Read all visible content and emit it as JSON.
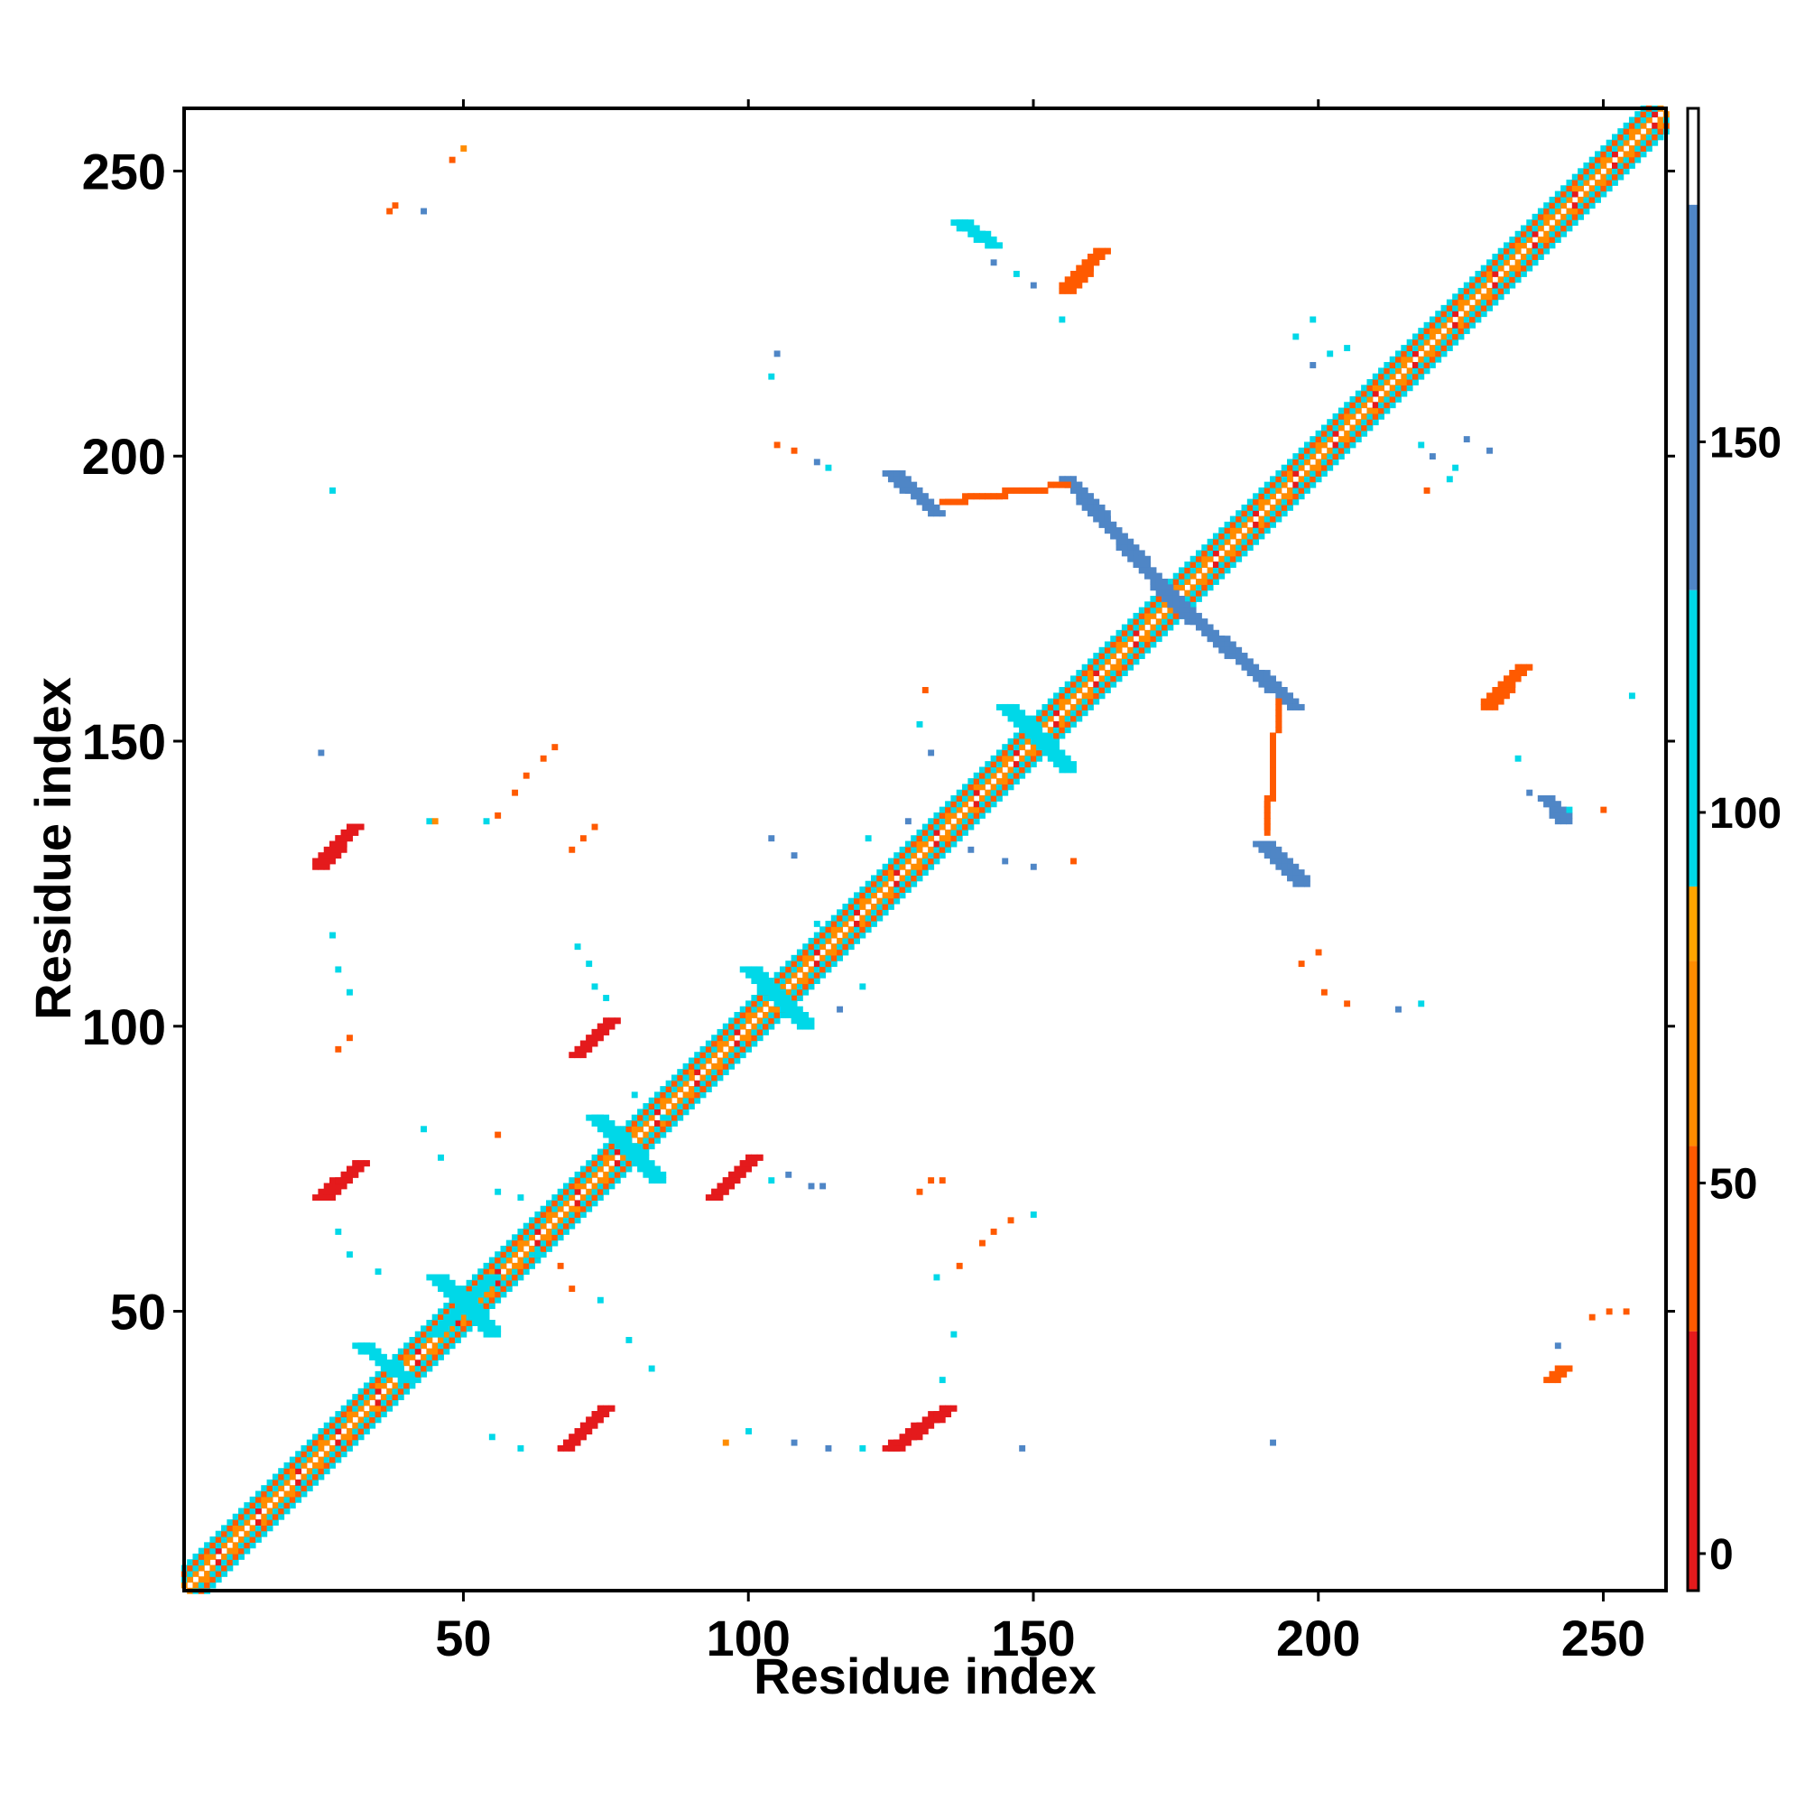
{
  "chart_data": {
    "type": "heatmap",
    "title": "",
    "xlabel": "Residue index",
    "ylabel": "Residue index",
    "xlim": [
      1,
      261
    ],
    "ylim": [
      1,
      261
    ],
    "x_ticks": [
      50,
      100,
      150,
      200,
      250
    ],
    "y_ticks": [
      50,
      100,
      150,
      200,
      250
    ],
    "grid": false,
    "colorbar": {
      "range": [
        -5,
        195
      ],
      "ticks": [
        0,
        50,
        100,
        150
      ],
      "bands": [
        {
          "from": -5,
          "to": 30,
          "color": "#e41a1c"
        },
        {
          "from": 30,
          "to": 55,
          "color": "#ff5a00"
        },
        {
          "from": 55,
          "to": 80,
          "color": "#ff8c00"
        },
        {
          "from": 80,
          "to": 90,
          "color": "#ffa500"
        },
        {
          "from": 90,
          "to": 130,
          "color": "#00d8e8"
        },
        {
          "from": 130,
          "to": 182,
          "color": "#4f86c6"
        },
        {
          "from": 182,
          "to": 195,
          "color": "#ffffff"
        }
      ]
    },
    "diagonal_band": {
      "from": 1,
      "to": 261,
      "halfwidth": 4
    },
    "segments": [
      {
        "x1": 25,
        "y1": 128,
        "x2": 31,
        "y2": 135,
        "w": 3,
        "v": 20
      },
      {
        "x1": 25,
        "y1": 70,
        "x2": 32,
        "y2": 76,
        "w": 3,
        "v": 20
      },
      {
        "x1": 68,
        "y1": 26,
        "x2": 75,
        "y2": 33,
        "w": 3,
        "v": 25
      },
      {
        "x1": 70,
        "y1": 95,
        "x2": 76,
        "y2": 101,
        "w": 3,
        "v": 25
      },
      {
        "x1": 94,
        "y1": 70,
        "x2": 101,
        "y2": 77,
        "w": 3,
        "v": 25
      },
      {
        "x1": 125,
        "y1": 26,
        "x2": 135,
        "y2": 33,
        "w": 3,
        "v": 20
      },
      {
        "x1": 156,
        "y1": 229,
        "x2": 162,
        "y2": 236,
        "w": 3,
        "v": 30
      },
      {
        "x1": 230,
        "y1": 156,
        "x2": 236,
        "y2": 163,
        "w": 3,
        "v": 30
      },
      {
        "x1": 241,
        "y1": 38,
        "x2": 243,
        "y2": 40,
        "w": 3,
        "v": 50
      },
      {
        "x1": 125,
        "y1": 197,
        "x2": 133,
        "y2": 190,
        "w": 3,
        "v": 140
      },
      {
        "x1": 190,
        "y1": 132,
        "x2": 197,
        "y2": 125,
        "w": 3,
        "v": 140
      },
      {
        "x1": 156,
        "y1": 196,
        "x2": 175,
        "y2": 174,
        "w": 3,
        "v": 145
      },
      {
        "x1": 175,
        "y1": 174,
        "x2": 196,
        "y2": 156,
        "w": 3,
        "v": 145
      },
      {
        "x1": 137,
        "y1": 241,
        "x2": 143,
        "y2": 237,
        "w": 2,
        "v": 110
      },
      {
        "x1": 240,
        "y1": 140,
        "x2": 243,
        "y2": 136,
        "w": 2,
        "v": 140
      },
      {
        "x1": 134,
        "y1": 192,
        "x2": 156,
        "y2": 195,
        "w": 1.5,
        "v": 40
      },
      {
        "x1": 191,
        "y1": 134,
        "x2": 193,
        "y2": 157,
        "w": 1.5,
        "v": 40
      },
      {
        "x1": 32,
        "y1": 44,
        "x2": 40,
        "y2": 38,
        "w": 2,
        "v": 100
      },
      {
        "x1": 45,
        "y1": 56,
        "x2": 55,
        "y2": 46,
        "w": 3,
        "v": 110
      },
      {
        "x1": 45,
        "y1": 46,
        "x2": 55,
        "y2": 56,
        "w": 3,
        "v": 110
      },
      {
        "x1": 100,
        "y1": 110,
        "x2": 110,
        "y2": 100,
        "w": 3,
        "v": 110
      },
      {
        "x1": 145,
        "y1": 156,
        "x2": 156,
        "y2": 145,
        "w": 3,
        "v": 110
      },
      {
        "x1": 73,
        "y1": 84,
        "x2": 84,
        "y2": 73,
        "w": 2,
        "v": 110
      }
    ],
    "points": [
      [
        37,
        243,
        40
      ],
      [
        38,
        244,
        50
      ],
      [
        43,
        243,
        140
      ],
      [
        48,
        252,
        40
      ],
      [
        50,
        254,
        55
      ],
      [
        27,
        194,
        110
      ],
      [
        25,
        148,
        140
      ],
      [
        27,
        116,
        110
      ],
      [
        28,
        110,
        110
      ],
      [
        30,
        106,
        110
      ],
      [
        28,
        96,
        50
      ],
      [
        30,
        98,
        40
      ],
      [
        44,
        136,
        110
      ],
      [
        45,
        136,
        60
      ],
      [
        54,
        136,
        110
      ],
      [
        56,
        137,
        40
      ],
      [
        59,
        141,
        50
      ],
      [
        61,
        144,
        40
      ],
      [
        64,
        147,
        30
      ],
      [
        66,
        149,
        50
      ],
      [
        69,
        131,
        50
      ],
      [
        71,
        133,
        40
      ],
      [
        73,
        135,
        50
      ],
      [
        70,
        114,
        110
      ],
      [
        72,
        111,
        110
      ],
      [
        73,
        107,
        110
      ],
      [
        75,
        105,
        110
      ],
      [
        89,
        91,
        110
      ],
      [
        92,
        89,
        40
      ],
      [
        85,
        84,
        110
      ],
      [
        80,
        88,
        110
      ],
      [
        43,
        82,
        110
      ],
      [
        56,
        81,
        40
      ],
      [
        46,
        77,
        110
      ],
      [
        56,
        71,
        110
      ],
      [
        60,
        70,
        110
      ],
      [
        28,
        64,
        110
      ],
      [
        30,
        60,
        110
      ],
      [
        35,
        57,
        110
      ],
      [
        63,
        60,
        110
      ],
      [
        67,
        58,
        40
      ],
      [
        69,
        54,
        50
      ],
      [
        74,
        52,
        110
      ],
      [
        79,
        45,
        110
      ],
      [
        83,
        40,
        110
      ],
      [
        55,
        28,
        110
      ],
      [
        60,
        26,
        110
      ],
      [
        96,
        27,
        60
      ],
      [
        100,
        29,
        110
      ],
      [
        108,
        27,
        140
      ],
      [
        114,
        26,
        140
      ],
      [
        120,
        26,
        110
      ],
      [
        104,
        73,
        110
      ],
      [
        107,
        74,
        140
      ],
      [
        111,
        72,
        140
      ],
      [
        113,
        72,
        140
      ],
      [
        130,
        71,
        50
      ],
      [
        132,
        73,
        50
      ],
      [
        134,
        73,
        40
      ],
      [
        133,
        56,
        110
      ],
      [
        137,
        58,
        40
      ],
      [
        141,
        62,
        50
      ],
      [
        143,
        64,
        50
      ],
      [
        146,
        66,
        50
      ],
      [
        150,
        67,
        110
      ],
      [
        136,
        46,
        110
      ],
      [
        134,
        38,
        110
      ],
      [
        148,
        26,
        140
      ],
      [
        192,
        27,
        140
      ],
      [
        105,
        218,
        140
      ],
      [
        104,
        214,
        110
      ],
      [
        105,
        202,
        50
      ],
      [
        108,
        201,
        50
      ],
      [
        112,
        199,
        140
      ],
      [
        114,
        198,
        110
      ],
      [
        131,
        159,
        40
      ],
      [
        130,
        153,
        110
      ],
      [
        132,
        148,
        140
      ],
      [
        128,
        136,
        140
      ],
      [
        121,
        133,
        110
      ],
      [
        104,
        133,
        140
      ],
      [
        108,
        130,
        140
      ],
      [
        139,
        131,
        140
      ],
      [
        145,
        129,
        140
      ],
      [
        150,
        128,
        140
      ],
      [
        157,
        129,
        30
      ],
      [
        116,
        103,
        140
      ],
      [
        120,
        107,
        110
      ],
      [
        112,
        118,
        110
      ],
      [
        197,
        111,
        40
      ],
      [
        200,
        113,
        40
      ],
      [
        201,
        106,
        50
      ],
      [
        205,
        104,
        40
      ],
      [
        214,
        103,
        140
      ],
      [
        218,
        104,
        110
      ],
      [
        196,
        221,
        110
      ],
      [
        199,
        224,
        110
      ],
      [
        202,
        218,
        110
      ],
      [
        205,
        219,
        110
      ],
      [
        199,
        216,
        140
      ],
      [
        218,
        202,
        110
      ],
      [
        220,
        200,
        140
      ],
      [
        224,
        198,
        110
      ],
      [
        226,
        203,
        140
      ],
      [
        230,
        201,
        140
      ],
      [
        219,
        194,
        50
      ],
      [
        223,
        196,
        110
      ],
      [
        155,
        224,
        110
      ],
      [
        150,
        230,
        140
      ],
      [
        147,
        232,
        110
      ],
      [
        143,
        234,
        140
      ],
      [
        235,
        147,
        110
      ],
      [
        237,
        141,
        140
      ],
      [
        244,
        138,
        110
      ],
      [
        250,
        138,
        50
      ],
      [
        248,
        49,
        40
      ],
      [
        251,
        50,
        40
      ],
      [
        254,
        50,
        50
      ],
      [
        242,
        44,
        140
      ],
      [
        255,
        158,
        110
      ]
    ]
  }
}
